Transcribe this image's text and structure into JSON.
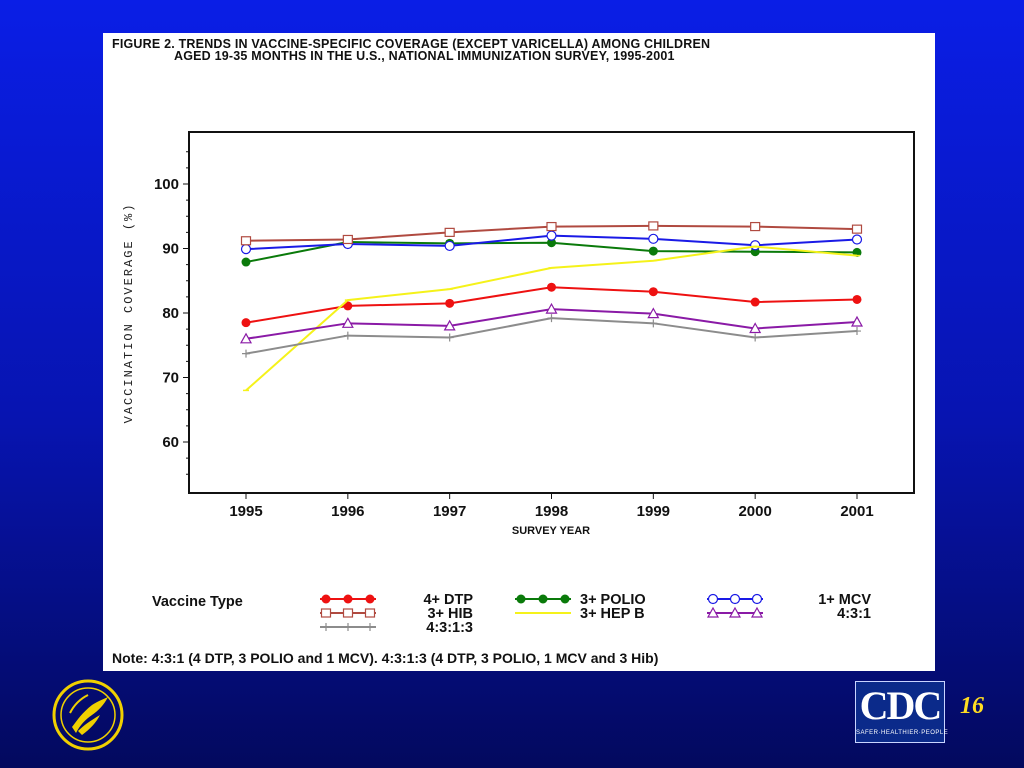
{
  "figure": {
    "title_line1": "FIGURE 2. TRENDS IN VACCINE-SPECIFIC COVERAGE (EXCEPT VARICELLA)  AMONG CHILDREN",
    "title_line2": "AGED 19-35 MONTHS IN THE U.S., NATIONAL IMMUNIZATION SURVEY, 1995-2001",
    "note": "Note: 4:3:1 (4 DTP, 3 POLIO and 1 MCV). 4:3:1:3 (4 DTP, 3 POLIO, 1 MCV and 3 Hib)"
  },
  "legend": {
    "title": "Vaccine Type"
  },
  "page_number": "16",
  "logos": {
    "cdc_text": "CDC",
    "cdc_tagline": "SAFER·HEALTHIER·PEOPLE"
  },
  "colors": {
    "background": "#0714b0",
    "page_number": "#ffdd22"
  },
  "chart_data": {
    "type": "line",
    "xlabel": "SURVEY YEAR",
    "ylabel": "VACCINATION COVERAGE (%)",
    "x": [
      1995,
      1996,
      1997,
      1998,
      1999,
      2000,
      2001
    ],
    "xlim": [
      1995,
      2001
    ],
    "ylim": [
      53,
      108
    ],
    "yticks": [
      60,
      70,
      80,
      90,
      100
    ],
    "grid": false,
    "legend_position": "bottom",
    "series": [
      {
        "name": "4+ DTP",
        "color": "#ee1111",
        "marker": "dot",
        "values": [
          78.5,
          81.1,
          81.5,
          84.0,
          83.3,
          81.7,
          82.1
        ]
      },
      {
        "name": "3+ POLIO",
        "color": "#0a7a0a",
        "marker": "dot",
        "values": [
          87.9,
          91.0,
          90.8,
          90.9,
          89.6,
          89.5,
          89.4
        ]
      },
      {
        "name": "1+ MCV",
        "color": "#1a1ae6",
        "marker": "circle",
        "values": [
          89.9,
          90.7,
          90.4,
          92.0,
          91.5,
          90.5,
          91.4
        ]
      },
      {
        "name": "3+ HIB",
        "color": "#b04a40",
        "marker": "square",
        "values": [
          91.2,
          91.4,
          92.5,
          93.4,
          93.5,
          93.4,
          93.0
        ]
      },
      {
        "name": "3+ HEP B",
        "color": "#f5f21a",
        "marker": "tick",
        "values": [
          68.0,
          82.0,
          83.7,
          87.0,
          88.1,
          90.3,
          88.9
        ]
      },
      {
        "name": "4:3:1",
        "color": "#8a1aa6",
        "marker": "triangle",
        "values": [
          76.0,
          78.4,
          78.0,
          80.6,
          79.9,
          77.6,
          78.6
        ]
      },
      {
        "name": "4:3:1:3",
        "color": "#8c8c8c",
        "marker": "plus",
        "values": [
          73.7,
          76.5,
          76.2,
          79.2,
          78.4,
          76.2,
          77.2
        ]
      }
    ]
  }
}
